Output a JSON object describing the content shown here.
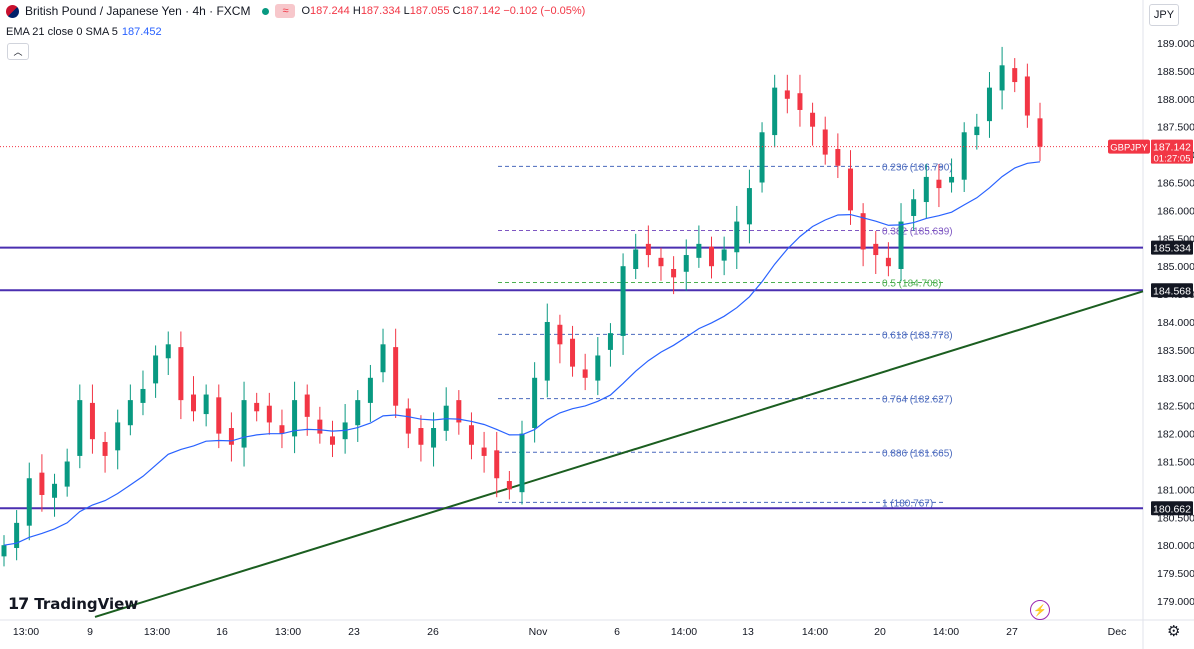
{
  "header": {
    "title": "British Pound / Japanese Yen · 4h · FXCM",
    "ohlc": [
      {
        "label": "O",
        "value": "187.244"
      },
      {
        "label": "H",
        "value": "187.334"
      },
      {
        "label": "L",
        "value": "187.055"
      },
      {
        "label": "C",
        "value": "187.142"
      }
    ],
    "change": "−0.102 (−0.05%)",
    "indicator_label": "EMA 21 close 0 SMA 5",
    "indicator_value": "187.452",
    "icons": [
      "flag-icon",
      "live-dot-icon",
      "wave-icon",
      "chevron-up-icon"
    ]
  },
  "currency": "JPY",
  "logo_text": "TradingView",
  "colors": {
    "up": "#089981",
    "down": "#f23645",
    "ema": "#2962ff",
    "level_line": "#4a2fb0",
    "trend_line": "#1b5e20",
    "fib_line": "#4a69bd",
    "fib_green": "#4caf50"
  },
  "chart_data": {
    "type": "candlestick",
    "symbol": "GBPJPY",
    "timeframe": "4h",
    "ylim": [
      178.8,
      189.3
    ],
    "y_ticks": [
      "189.000",
      "188.500",
      "188.000",
      "187.500",
      "187.000",
      "186.500",
      "186.000",
      "185.500",
      "185.000",
      "184.500",
      "184.000",
      "183.500",
      "183.000",
      "182.500",
      "182.000",
      "181.500",
      "181.000",
      "180.500",
      "180.000",
      "179.500",
      "179.000"
    ],
    "x_ticks": [
      "13:00",
      "9",
      "13:00",
      "16",
      "13:00",
      "23",
      "26",
      "Nov",
      "6",
      "14:00",
      "13",
      "14:00",
      "20",
      "14:00",
      "27",
      "Dec"
    ],
    "current_price": {
      "label": "GBPJPY",
      "value": "187.142",
      "countdown": "01:27:05",
      "price": 187.142
    },
    "horizontal_levels": [
      {
        "price": 185.334,
        "label": "185.334"
      },
      {
        "price": 184.568,
        "label": "184.568"
      },
      {
        "price": 180.662,
        "label": "180.662"
      }
    ],
    "trend_line": {
      "from_price": 178.75,
      "to_price": 184.55
    },
    "fib_levels": [
      {
        "ratio": "0.236",
        "price": 186.79,
        "label": "0.236 (186.790)"
      },
      {
        "ratio": "0.382",
        "price": 185.639,
        "label": "0.382 (185.639)"
      },
      {
        "ratio": "0.5",
        "price": 184.708,
        "label": "0.5 (184.708)"
      },
      {
        "ratio": "0.618",
        "price": 183.778,
        "label": "0.618 (183.778)"
      },
      {
        "ratio": "0.764",
        "price": 182.627,
        "label": "0.764 (182.627)"
      },
      {
        "ratio": "0.886",
        "price": 181.665,
        "label": "0.886 (181.665)"
      },
      {
        "ratio": "1",
        "price": 180.767,
        "label": "1 (180.767)"
      }
    ],
    "close_path": [
      180.0,
      180.4,
      181.2,
      180.9,
      181.1,
      181.5,
      182.6,
      181.9,
      181.6,
      182.2,
      182.6,
      182.8,
      183.4,
      183.6,
      182.6,
      182.4,
      182.7,
      182.0,
      181.8,
      182.6,
      182.4,
      182.2,
      182.0,
      182.6,
      182.3,
      182.0,
      181.8,
      182.2,
      182.6,
      183.0,
      183.6,
      182.5,
      182.0,
      181.8,
      182.1,
      182.5,
      182.2,
      181.8,
      181.6,
      181.2,
      181.0,
      182.0,
      183.0,
      184.0,
      183.6,
      183.2,
      183.0,
      183.4,
      183.8,
      185.0,
      185.3,
      185.2,
      185.0,
      184.8,
      185.2,
      185.4,
      185.0,
      185.3,
      185.8,
      186.4,
      187.4,
      188.2,
      188.0,
      187.8,
      187.5,
      187.0,
      186.8,
      186.0,
      185.3,
      185.2,
      185.0,
      185.8,
      186.2,
      186.6,
      186.4,
      186.6,
      187.4,
      187.5,
      188.2,
      188.6,
      188.3,
      187.7,
      187.142
    ],
    "ema_label": "EMA 21"
  }
}
